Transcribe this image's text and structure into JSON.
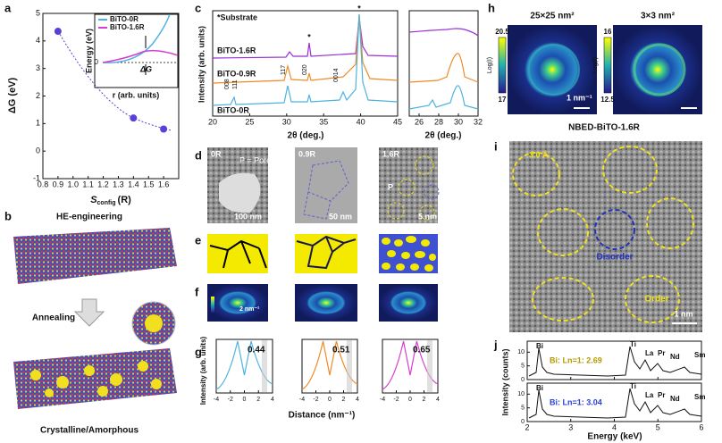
{
  "panels": {
    "a": "a",
    "b": "b",
    "c": "c",
    "d": "d",
    "e": "e",
    "f": "f",
    "g": "g",
    "h": "h",
    "i": "i",
    "j": "j"
  },
  "a": {
    "ylabel": "ΔG (eV)",
    "xlabel": {
      "main": "S",
      "sub": "config",
      "unit": "(R)"
    },
    "x": [
      0.9,
      1.4,
      1.6
    ],
    "y": [
      4.35,
      1.2,
      0.8
    ],
    "color": "#5b3fd8",
    "xlim": [
      0.8,
      1.7
    ],
    "ylim": [
      -1,
      5
    ],
    "xticks": [
      0.8,
      0.9,
      {
        "value": 1,
        "label": "1.0"
      },
      1.1,
      1.2,
      1.3,
      1.4,
      1.5,
      1.6
    ],
    "yticks": [
      -1,
      0,
      1,
      2,
      3,
      4,
      5
    ],
    "inset": {
      "legend": [
        "BiTO-0R",
        "BiTO-1.6R"
      ],
      "colors": [
        "#4cb3e0",
        "#d63fd1"
      ],
      "ylabel": "Energy (eV)",
      "xlabel": "r (arb. units)",
      "dg": "ΔG",
      "zero": "0"
    }
  },
  "b": {
    "top": "HE-engineering",
    "mid": "Annealing",
    "bottom": "Crystalline/Amorphous"
  },
  "c": {
    "note": "*Substrate",
    "curves": [
      "BiTO-1.6R",
      "BiTO-0.9R",
      "BiTO-0R"
    ],
    "peaks": [
      "008",
      "111",
      "117",
      "020",
      "0014"
    ],
    "star": "*",
    "ylabel": "Intensity (arb. units)",
    "xlabel": "2θ (deg.)",
    "xlim": [
      20,
      45
    ],
    "xticks": [
      20,
      25,
      30,
      35,
      40,
      45
    ],
    "x2lim": [
      25,
      32
    ],
    "x2ticks": [
      26,
      28,
      30,
      32
    ]
  },
  "d": {
    "labels": [
      "0R",
      "0.9R",
      "1.6R"
    ],
    "pore": "P = Pore",
    "p": "P",
    "scales": [
      "100 nm",
      "50 nm",
      "5 nm"
    ]
  },
  "f": {
    "scale": "2 nm⁻¹"
  },
  "g": {
    "values": [
      0.44,
      0.51,
      0.65
    ],
    "ylabel": "Intensity (arb. units)",
    "xlabel": "Distance (nm⁻¹)",
    "xlim": [
      -4,
      4
    ],
    "xticks": [
      -4,
      -2,
      0,
      2,
      4
    ]
  },
  "h": {
    "titles": [
      "25×25 nm²",
      "3×3 nm²"
    ],
    "bars": [
      [
        20.5,
        17
      ],
      [
        16,
        12.5
      ]
    ],
    "cbar": "Log(I)",
    "scale": "1 nm⁻¹",
    "caption": "NBED-BiTO-1.6R"
  },
  "i": {
    "spacing": "3.0 Å",
    "disorder": "Disorder",
    "order": "Order",
    "scale": "1 nm"
  },
  "j": {
    "elements": [
      "Bi",
      "Ti",
      "La",
      "Pr",
      "Nd",
      "Sm"
    ],
    "ratios": [
      "Bi: Ln=1: 2.69",
      "Bi: Ln=1: 3.04"
    ],
    "ratio_colors": [
      "#b59a00",
      "#2a3fd6"
    ],
    "ylabel": "Intensity (counts)",
    "xlabel": "Energy (keV)",
    "xlim": [
      2,
      6
    ],
    "xticks": [
      2,
      3,
      4,
      5,
      6
    ],
    "ylim": [
      0,
      14
    ],
    "yticks": [
      0,
      5,
      10
    ]
  }
}
